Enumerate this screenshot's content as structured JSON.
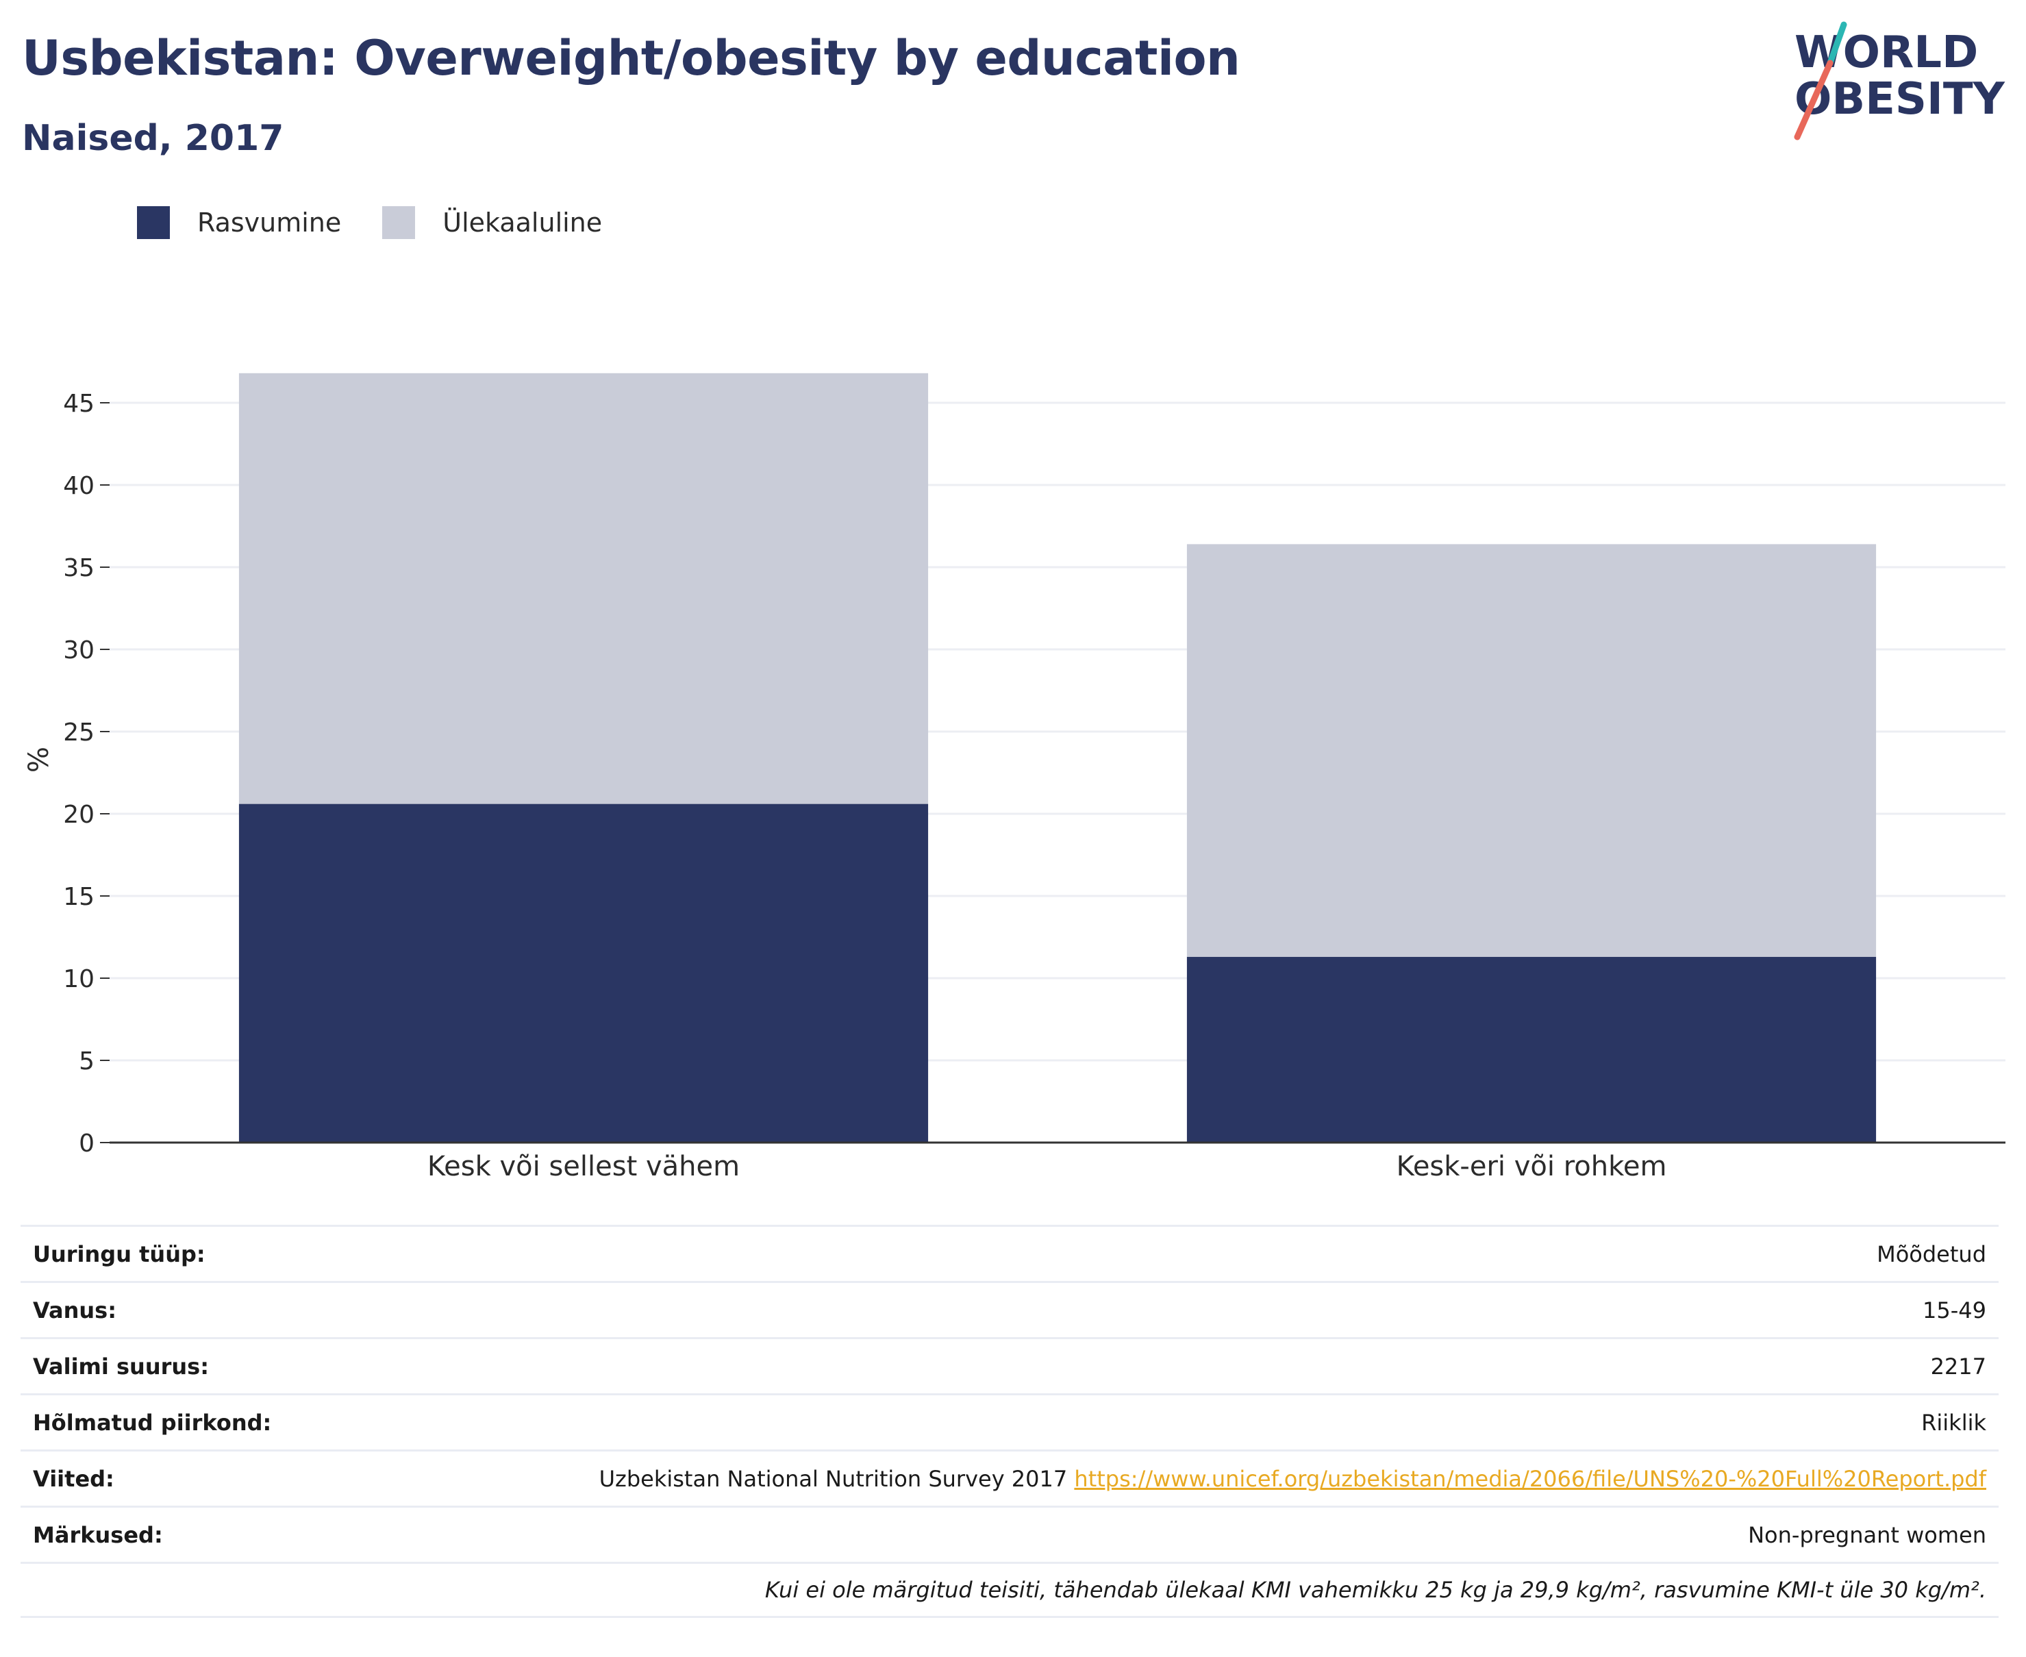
{
  "header": {
    "title": "Usbekistan: Overweight/obesity by education",
    "subtitle": "Naised, 2017"
  },
  "logo": {
    "line1": "WORLD",
    "line2": "OBESITY",
    "colors": {
      "text": "#2a3561",
      "slash_top": "#2bb6b3",
      "slash_bottom": "#e8685a"
    }
  },
  "colors": {
    "obesity": "#2a3663",
    "overweight": "#c9ccd8",
    "grid": "#eceef3",
    "axis": "#333333",
    "link": "#e8a922"
  },
  "chart_data": {
    "type": "bar",
    "stacked": true,
    "categories": [
      "Kesk või sellest vähem",
      "Kesk-eri või rohkem"
    ],
    "series": [
      {
        "name": "Rasvumine",
        "values": [
          20.6,
          11.3
        ],
        "color": "#2a3663"
      },
      {
        "name": "Ülekaaluline",
        "values": [
          26.2,
          25.1
        ],
        "color": "#c9ccd8"
      }
    ],
    "title": "",
    "xlabel": "",
    "ylabel": "%",
    "ylim": [
      0,
      47
    ],
    "yticks": [
      0,
      5,
      10,
      15,
      20,
      25,
      30,
      35,
      40,
      45
    ],
    "grid": true,
    "legend_position": "top-left"
  },
  "info": {
    "rows": [
      {
        "label": "Uuringu tüüp:",
        "value": "Mõõdetud"
      },
      {
        "label": "Vanus:",
        "value": "15-49"
      },
      {
        "label": "Valimi suurus:",
        "value": "2217"
      },
      {
        "label": "Hõlmatud piirkond:",
        "value": "Riiklik"
      }
    ],
    "references": {
      "label": "Viited:",
      "text": "Uzbekistan National Nutrition Survey 2017",
      "link": "https://www.unicef.org/uzbekistan/media/2066/file/UNS%20-%20Full%20Report.pdf"
    },
    "notes": {
      "label": "Märkused:",
      "value": "Non-pregnant women"
    },
    "footnote": "Kui ei ole märgitud teisiti, tähendab ülekaal KMI vahemikku 25 kg ja 29,9 kg/m², rasvumine KMI-t üle 30 kg/m²."
  }
}
